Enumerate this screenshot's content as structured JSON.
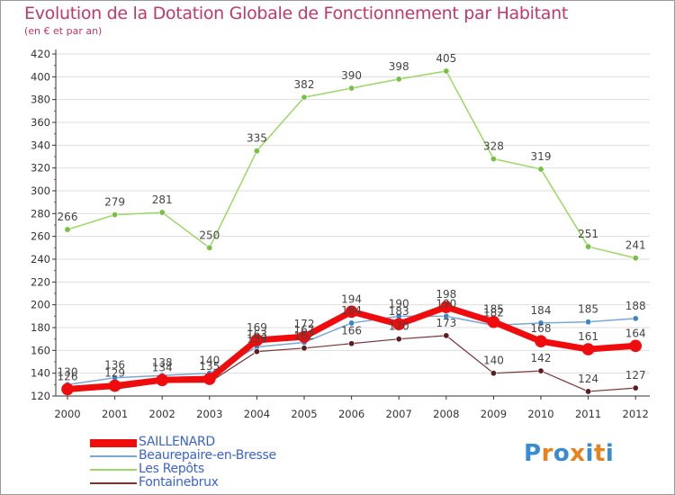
{
  "title": "Evolution de la Dotation Globale de Fonctionnement par Habitant",
  "subtitle": "(en € et par an)",
  "logo": {
    "text": "Proxiti",
    "letter_colors": [
      "#3a8bd0",
      "#e8821e",
      "#3a8bd0",
      "#e8821e",
      "#3a8bd0",
      "#e8821e",
      "#3a8bd0"
    ]
  },
  "colors": {
    "title": "#c0386a",
    "legend_text": "#3b63d0",
    "axis": "#333333",
    "grid": "#dddddd"
  },
  "chart_data": {
    "type": "line",
    "title": "Evolution de la Dotation Globale de Fonctionnement par Habitant",
    "subtitle": "(en € et par an)",
    "xlabel": "",
    "ylabel": "",
    "x": [
      "2000",
      "2001",
      "2002",
      "2003",
      "2004",
      "2005",
      "2006",
      "2007",
      "2008",
      "2009",
      "2010",
      "2011",
      "2012"
    ],
    "ylim": [
      120,
      420
    ],
    "yticks": [
      120,
      140,
      160,
      180,
      200,
      220,
      240,
      260,
      280,
      300,
      320,
      340,
      360,
      380,
      400,
      420
    ],
    "grid": "horizontal",
    "legend_position": "bottom-left",
    "series": [
      {
        "name": "Les Repôts",
        "color": "#9ad962",
        "marker": "#76c043",
        "width": 1.5,
        "labels": "above",
        "values": [
          266,
          279,
          281,
          250,
          335,
          382,
          390,
          398,
          405,
          328,
          319,
          251,
          241
        ]
      },
      {
        "name": "Beaurepaire-en-Bresse",
        "color": "#79a8d4",
        "marker": "#3f84c6",
        "width": 1.5,
        "labels": "above",
        "values": [
          130,
          136,
          138,
          140,
          163,
          167,
          184,
          190,
          190,
          182,
          184,
          185,
          188
        ]
      },
      {
        "name": "Fontainebrux",
        "color": "#7a3333",
        "marker": "#5a1e1e",
        "width": 1.2,
        "labels": "sparse",
        "values": [
          128,
          126,
          132,
          132,
          159,
          162,
          166,
          170,
          173,
          140,
          142,
          124,
          127
        ]
      },
      {
        "name": "SAILLENARD",
        "color": "#f00c0c",
        "marker": "#f00c0c",
        "width": 7,
        "labels": "above",
        "values": [
          126,
          129,
          134,
          135,
          169,
          172,
          194,
          183,
          198,
          185,
          168,
          161,
          164
        ]
      }
    ],
    "legend": [
      "SAILLENARD",
      "Beaurepaire-en-Bresse",
      "Les Repôts",
      "Fontainebrux"
    ]
  }
}
